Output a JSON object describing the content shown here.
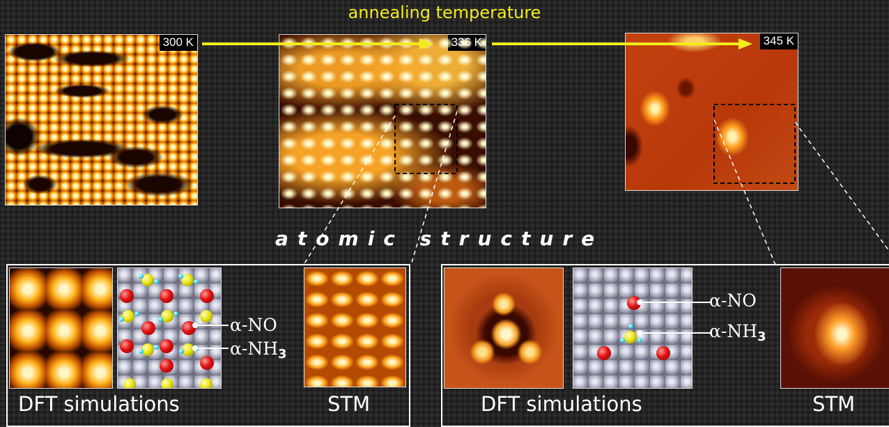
{
  "header": {
    "title": "annealing temperature",
    "edge_text": ""
  },
  "stm_images": [
    {
      "temperature": "300 K"
    },
    {
      "temperature": "336 K"
    },
    {
      "temperature": "345 K"
    }
  ],
  "section_title": "atomic structure",
  "left_panel": {
    "caption_dft": "DFT simulations",
    "caption_stm": "STM",
    "label_no_prefix": "α-NO",
    "label_nh_prefix": "α-NH",
    "label_nh_sub": "3"
  },
  "right_panel": {
    "caption_dft": "DFT simulations",
    "caption_stm": "STM",
    "label_no_prefix": "α-NO",
    "label_nh_prefix": "α-NH",
    "label_nh_sub": "3"
  },
  "colors": {
    "arrow": "#f2ec1a",
    "title": "#f2ec1a",
    "oxygen": "#e01010",
    "nitrogen": "#e8e410",
    "hydrogen": "#2ad0e8"
  }
}
